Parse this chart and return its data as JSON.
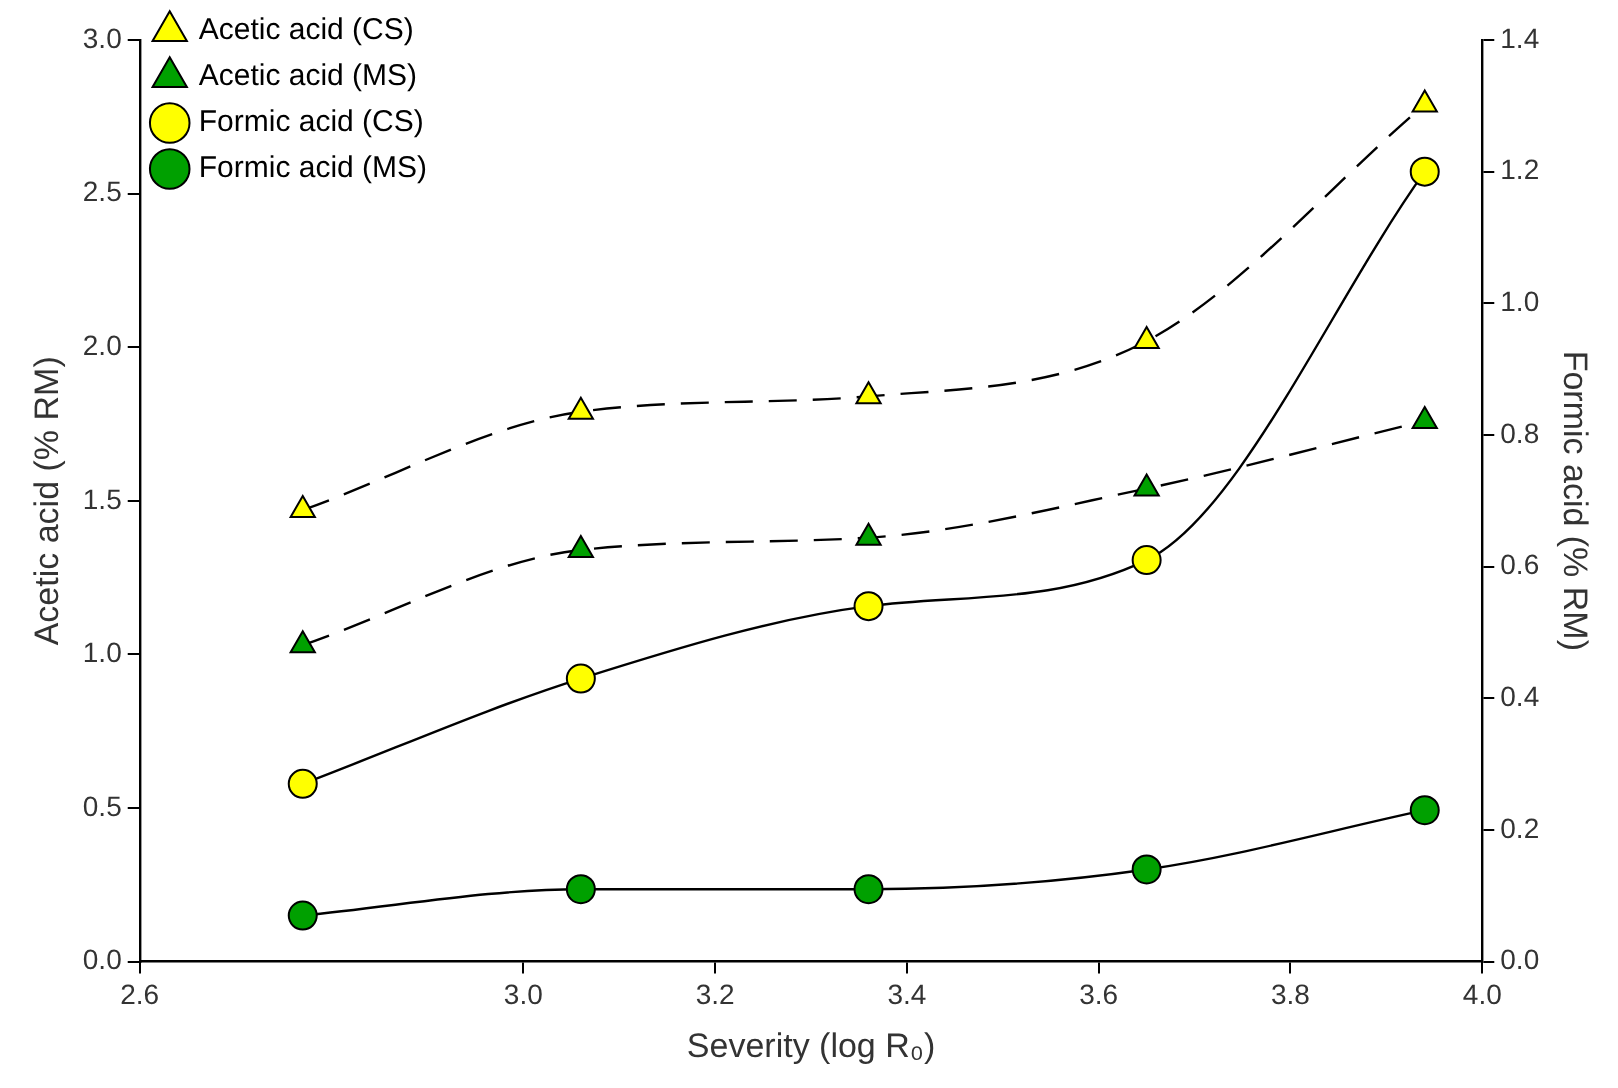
{
  "chart_data": {
    "type": "line",
    "xlabel": "Severity (log R₀)",
    "ylabel": "Acetic acid (% RM)",
    "y2label": "Formic acid (% RM)",
    "x": [
      2.77,
      3.06,
      3.36,
      3.65,
      3.94
    ],
    "series": [
      {
        "name": "Acetic acid (CS)",
        "color": "#ffff00",
        "marker": "triangle",
        "line_style": "dashed",
        "values": [
          1.47,
          1.79,
          1.84,
          2.02,
          2.79
        ]
      },
      {
        "name": "Acetic acid (MS)",
        "color": "#00a000",
        "marker": "triangle",
        "line_style": "dashed",
        "values": [
          1.03,
          1.34,
          1.38,
          1.54,
          1.76
        ]
      },
      {
        "name": "Formic acid (CS)",
        "color": "#ffff00",
        "marker": "circle",
        "line_style": "solid",
        "axis": "y2",
        "values": [
          0.27,
          0.43,
          0.54,
          0.61,
          1.2
        ]
      },
      {
        "name": "Formic acid (MS)",
        "color": "#00a000",
        "marker": "circle",
        "line_style": "solid",
        "axis": "y2",
        "values": [
          0.07,
          0.11,
          0.11,
          0.14,
          0.23
        ]
      }
    ],
    "xlim": [
      2.6,
      4.0
    ],
    "xticks": [
      2.6,
      {
        "value": 3,
        "label": "3.0"
      },
      3.2,
      3.4,
      3.6,
      3.8,
      {
        "value": 4,
        "label": "4.0"
      }
    ],
    "ylim": [
      0,
      3
    ],
    "yticks": [
      {
        "value": 0,
        "label": "0.0"
      },
      0.5,
      {
        "value": 1,
        "label": "1.0"
      },
      1.5,
      {
        "value": 2,
        "label": "2.0"
      },
      2.5,
      {
        "value": 3,
        "label": "3.0"
      }
    ],
    "y2lim": [
      0,
      1.4
    ],
    "y2ticks": [
      {
        "value": 0,
        "label": "0.0"
      },
      0.2,
      0.4,
      0.6,
      0.8,
      {
        "value": 1,
        "label": "1.0"
      },
      1.2,
      1.4
    ],
    "grid": false,
    "legend": "top left"
  }
}
